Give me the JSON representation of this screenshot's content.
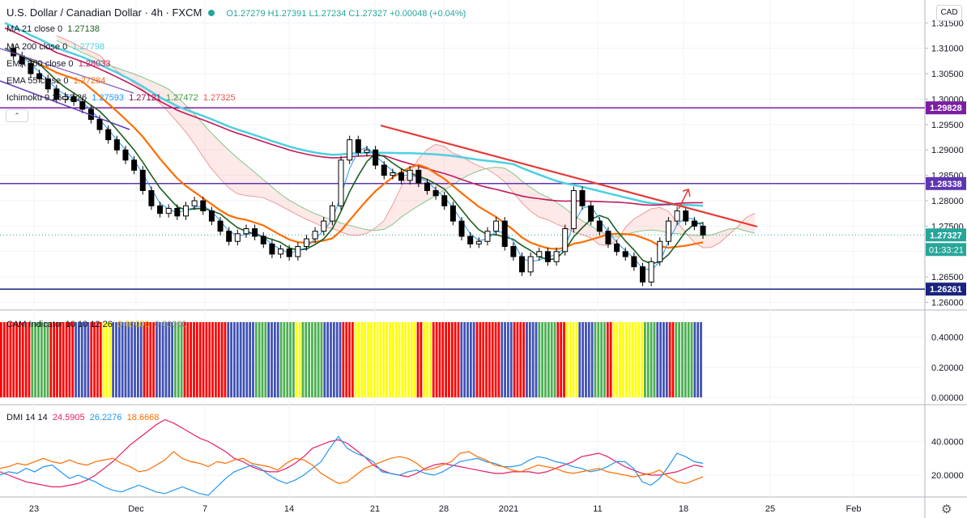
{
  "header": {
    "title": "U.S. Dollar / Canadian Dollar · 4h · FXCM",
    "ohlc": "O1.27279 H1.27391 L1.27234 C1.27327 +0.00048 (+0.04%)",
    "currency": "CAD"
  },
  "legend": {
    "ma21": {
      "label": "MA 21 close 0",
      "value": "1.27138",
      "color": "#1b5e20"
    },
    "ma200": {
      "label": "MA 200 close 0",
      "value": "1.27798",
      "color": "#4dd0e1"
    },
    "ema200": {
      "label": "EMA 200 close 0",
      "value": "1.28033",
      "color": "#c2185b"
    },
    "ema55": {
      "label": "EMA 55 close 0",
      "value": "1.27284",
      "color": "#ff6d00"
    },
    "ichimoku": {
      "label": "Ichimoku 9 26 52 26",
      "v1": "1.27593",
      "v2": "1.27121",
      "v3": "1.27472",
      "v4": "1.27325"
    }
  },
  "cam": {
    "label": "CAM Indicator 10 10 12 26",
    "v1": "0.00000",
    "v2": "0.00000"
  },
  "dmi": {
    "label": "DMI 14 14",
    "v1": "24.5905",
    "v2": "26.2276",
    "v3": "18.6668",
    "c1": "#e91e63",
    "c2": "#2196f3",
    "c3": "#ff6d00"
  },
  "price_badges": {
    "r1": "1.29828",
    "r2": "1.28338",
    "s1": "1.26261",
    "last": "1.27327",
    "countdown": "01:33:21"
  },
  "chart_data": [
    {
      "type": "candlestick",
      "title": "U.S. Dollar / Canadian Dollar · 4h · FXCM",
      "ylim": [
        1.2585,
        1.3195
      ],
      "y_ticks": [
        "1.31500",
        "1.31000",
        "1.30500",
        "1.30000",
        "1.29500",
        "1.29000",
        "1.28500",
        "1.28000",
        "1.27500",
        "1.27000",
        "1.26500",
        "1.26000"
      ],
      "x_ticks": [
        "23",
        "Dec",
        "7",
        "14",
        "21",
        "28",
        "2021",
        "11",
        "18",
        "25",
        "Feb"
      ],
      "horizontal_levels": [
        {
          "value": 1.29828,
          "color": "#7b1fa2"
        },
        {
          "value": 1.28338,
          "color": "#5e35b1"
        },
        {
          "value": 1.26261,
          "color": "#1a237e"
        }
      ],
      "close_path": [
        1.31,
        1.3085,
        1.307,
        1.305,
        1.304,
        1.302,
        1.3,
        1.3005,
        1.2995,
        1.298,
        1.296,
        1.294,
        1.292,
        1.29,
        1.288,
        1.286,
        1.282,
        1.279,
        1.2775,
        1.2785,
        1.277,
        1.279,
        1.28,
        1.278,
        1.276,
        1.274,
        1.272,
        1.2735,
        1.2745,
        1.273,
        1.2715,
        1.2695,
        1.2705,
        1.269,
        1.271,
        1.2725,
        1.274,
        1.276,
        1.279,
        1.288,
        1.292,
        1.2895,
        1.29,
        1.287,
        1.285,
        1.2855,
        1.284,
        1.286,
        1.2835,
        1.282,
        1.281,
        1.279,
        1.276,
        1.273,
        1.2715,
        1.272,
        1.274,
        1.276,
        1.271,
        1.269,
        1.266,
        1.269,
        1.27,
        1.268,
        1.27,
        1.2745,
        1.282,
        1.279,
        1.276,
        1.274,
        1.2715,
        1.27,
        1.269,
        1.267,
        1.264,
        1.268,
        1.272,
        1.276,
        1.278,
        1.276,
        1.275,
        1.2733
      ]
    },
    {
      "type": "bar",
      "title": "CAM Indicator 10 10 12 26",
      "ylim": [
        0,
        0.5
      ],
      "y_ticks": [
        "0.40000",
        "0.20000",
        "0.00000"
      ],
      "segments": [
        {
          "color": "#ff0000",
          "count": 10
        },
        {
          "color": "#4caf50",
          "count": 6
        },
        {
          "color": "#ff0000",
          "count": 8
        },
        {
          "color": "#3f51b5",
          "count": 5
        },
        {
          "color": "#ff0000",
          "count": 4
        },
        {
          "color": "#ffff00",
          "count": 3
        },
        {
          "color": "#3f51b5",
          "count": 10
        },
        {
          "color": "#ff0000",
          "count": 4
        },
        {
          "color": "#3f51b5",
          "count": 6
        },
        {
          "color": "#4caf50",
          "count": 3
        },
        {
          "color": "#ff0000",
          "count": 14
        },
        {
          "color": "#3f51b5",
          "count": 9
        },
        {
          "color": "#4caf50",
          "count": 4
        },
        {
          "color": "#3f51b5",
          "count": 4
        },
        {
          "color": "#4caf50",
          "count": 5
        },
        {
          "color": "#ffff00",
          "count": 2
        },
        {
          "color": "#4caf50",
          "count": 7
        },
        {
          "color": "#3f51b5",
          "count": 6
        },
        {
          "color": "#ff0000",
          "count": 4
        },
        {
          "color": "#ffff00",
          "count": 20
        },
        {
          "color": "#ff0000",
          "count": 2
        },
        {
          "color": "#ffff00",
          "count": 3
        },
        {
          "color": "#ff0000",
          "count": 9
        },
        {
          "color": "#3f51b5",
          "count": 5
        },
        {
          "color": "#ff0000",
          "count": 8
        },
        {
          "color": "#3f51b5",
          "count": 4
        },
        {
          "color": "#ff0000",
          "count": 4
        },
        {
          "color": "#3f51b5",
          "count": 4
        },
        {
          "color": "#4caf50",
          "count": 6
        },
        {
          "color": "#ff0000",
          "count": 3
        },
        {
          "color": "#ffff00",
          "count": 4
        },
        {
          "color": "#3f51b5",
          "count": 5
        },
        {
          "color": "#4caf50",
          "count": 4
        },
        {
          "color": "#ff0000",
          "count": 2
        },
        {
          "color": "#ffff00",
          "count": 10
        },
        {
          "color": "#4caf50",
          "count": 4
        },
        {
          "color": "#3f51b5",
          "count": 4
        },
        {
          "color": "#ff0000",
          "count": 2
        },
        {
          "color": "#4caf50",
          "count": 6
        },
        {
          "color": "#3f51b5",
          "count": 3
        }
      ]
    },
    {
      "type": "line",
      "title": "DMI 14 14",
      "ylim": [
        7,
        60
      ],
      "y_ticks": [
        "40.0000",
        "20.0000"
      ],
      "series": [
        {
          "name": "24.5905",
          "color": "#e91e63",
          "values": [
            22,
            20,
            18,
            16,
            15,
            14,
            13,
            13,
            14,
            15,
            17,
            20,
            24,
            28,
            33,
            38,
            42,
            46,
            50,
            53,
            51,
            48,
            45,
            42,
            40,
            37,
            34,
            30,
            28,
            25,
            23,
            22,
            22,
            24,
            27,
            31,
            36,
            38,
            40,
            41,
            39,
            35,
            31,
            26,
            23,
            21,
            20,
            19,
            21,
            24,
            26,
            27,
            26,
            25,
            24,
            23,
            22,
            21,
            21,
            22,
            22,
            22,
            21,
            22,
            24,
            26,
            28,
            31,
            32,
            33,
            31,
            28,
            25,
            23,
            21,
            20,
            20,
            21,
            22,
            24,
            26,
            25
          ]
        },
        {
          "name": "26.2276",
          "color": "#2196f3",
          "values": [
            20,
            22,
            21,
            24,
            22,
            25,
            26,
            22,
            18,
            20,
            18,
            16,
            13,
            11,
            10,
            12,
            14,
            12,
            10,
            9,
            11,
            13,
            11,
            9,
            8,
            13,
            18,
            22,
            24,
            26,
            24,
            20,
            17,
            15,
            17,
            20,
            24,
            28,
            36,
            43,
            36,
            33,
            31,
            28,
            22,
            21,
            20,
            22,
            23,
            21,
            20,
            22,
            25,
            28,
            29,
            30,
            28,
            27,
            25,
            25,
            26,
            29,
            31,
            30,
            28,
            27,
            25,
            24,
            22,
            23,
            25,
            28,
            28,
            24,
            16,
            14,
            18,
            25,
            33,
            31,
            28,
            27
          ]
        },
        {
          "name": "18.6668",
          "color": "#ff6d00",
          "values": [
            24,
            25,
            27,
            26,
            28,
            30,
            28,
            27,
            29,
            27,
            26,
            28,
            29,
            30,
            27,
            25,
            22,
            23,
            26,
            29,
            34,
            30,
            28,
            27,
            25,
            28,
            27,
            29,
            30,
            27,
            26,
            25,
            23,
            27,
            30,
            29,
            26,
            21,
            18,
            15,
            16,
            20,
            24,
            26,
            28,
            30,
            31,
            30,
            27,
            23,
            24,
            26,
            28,
            33,
            34,
            31,
            29,
            26,
            25,
            23,
            22,
            24,
            26,
            25,
            24,
            22,
            21,
            22,
            23,
            24,
            22,
            21,
            20,
            19,
            20,
            21,
            23,
            19,
            16,
            15,
            17,
            19
          ]
        }
      ]
    }
  ]
}
